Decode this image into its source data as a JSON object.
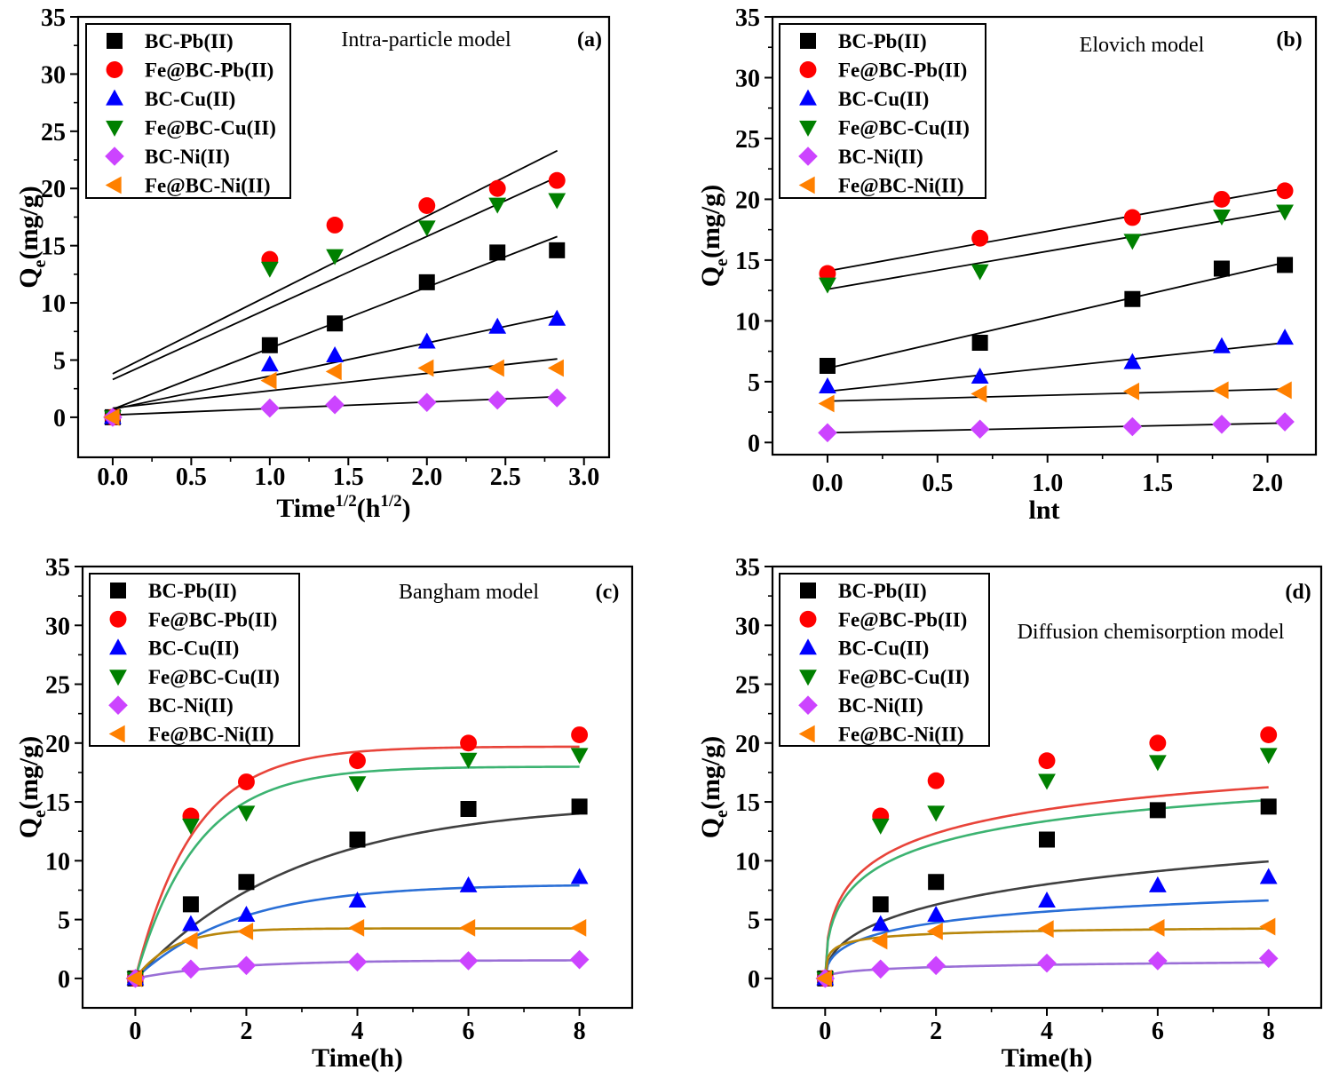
{
  "chart_data": [
    {
      "type": "scatter",
      "panel_label": "(a)",
      "model": "Intra-particle model",
      "xlabel": "Time",
      "xlabel_sup": "1/2",
      "xlabel_unit": "(h",
      "xlabel_unit_sup": "1/2",
      "xlabel_end": ")",
      "ylabel": "Q",
      "ylabel_sub": "e",
      "ylabel_unit": "(mg/g)",
      "xlim": [
        -0.22,
        3.16
      ],
      "ylim": [
        -3.5,
        35
      ],
      "xticks": [
        "0.0",
        "0.5",
        "1.0",
        "1.5",
        "2.0",
        "2.5",
        "3.0"
      ],
      "yticks": [
        "0",
        "5",
        "10",
        "15",
        "20",
        "25",
        "30",
        "35"
      ],
      "legend_position": "top-left",
      "fit": "linear",
      "series": [
        {
          "name": "BC-Pb(II)",
          "x": [
            0,
            1,
            1.414,
            2,
            2.449,
            2.828
          ],
          "y": [
            0,
            6.3,
            8.2,
            11.8,
            14.4,
            14.6
          ],
          "fit_line": [
            [
              0,
              0.7
            ],
            [
              2.83,
              15.8
            ]
          ]
        },
        {
          "name": "Fe@BC-Pb(II)",
          "x": [
            0,
            1,
            1.414,
            2,
            2.449,
            2.828
          ],
          "y": [
            0,
            13.8,
            16.8,
            18.5,
            20.0,
            20.7
          ],
          "fit_line": [
            [
              0,
              3.8
            ],
            [
              2.83,
              23.3
            ]
          ]
        },
        {
          "name": "BC-Cu(II)",
          "x": [
            0,
            1,
            1.414,
            2,
            2.449,
            2.828
          ],
          "y": [
            0,
            4.6,
            5.4,
            6.6,
            7.9,
            8.6
          ],
          "fit_line": [
            [
              0,
              0.7
            ],
            [
              2.83,
              8.9
            ]
          ]
        },
        {
          "name": "Fe@BC-Cu(II)",
          "x": [
            0,
            1,
            1.414,
            2,
            2.449,
            2.828
          ],
          "y": [
            0,
            13.0,
            14.1,
            16.6,
            18.6,
            19.0
          ],
          "fit_line": [
            [
              0,
              3.3
            ],
            [
              2.83,
              21.0
            ]
          ]
        },
        {
          "name": "BC-Ni(II)",
          "x": [
            0,
            1,
            1.414,
            2,
            2.449,
            2.828
          ],
          "y": [
            0,
            0.8,
            1.1,
            1.3,
            1.5,
            1.7
          ],
          "fit_line": [
            [
              0,
              0.2
            ],
            [
              2.83,
              1.8
            ]
          ]
        },
        {
          "name": "Fe@BC-Ni(II)",
          "x": [
            0,
            1,
            1.414,
            2,
            2.449,
            2.828
          ],
          "y": [
            0,
            3.2,
            4.0,
            4.3,
            4.3,
            4.3
          ],
          "fit_line": [
            [
              0,
              0.8
            ],
            [
              2.83,
              5.1
            ]
          ]
        }
      ]
    },
    {
      "type": "scatter",
      "panel_label": "(b)",
      "model": "Elovich model",
      "xlabel": "lnt",
      "ylabel": "Q",
      "ylabel_sub": "e",
      "ylabel_unit": "(mg/g)",
      "xlim": [
        -0.25,
        2.22
      ],
      "ylim": [
        -1,
        35
      ],
      "xticks": [
        "0.0",
        "0.5",
        "1.0",
        "1.5",
        "2.0"
      ],
      "yticks": [
        "0",
        "5",
        "10",
        "15",
        "20",
        "25",
        "30",
        "35"
      ],
      "legend_position": "top-left",
      "fit": "linear",
      "series": [
        {
          "name": "BC-Pb(II)",
          "x": [
            0,
            0.693,
            1.386,
            1.792,
            2.079
          ],
          "y": [
            6.3,
            8.2,
            11.8,
            14.3,
            14.6
          ],
          "fit_line": [
            [
              0,
              6.1
            ],
            [
              2.079,
              14.8
            ]
          ]
        },
        {
          "name": "Fe@BC-Pb(II)",
          "x": [
            0,
            0.693,
            1.386,
            1.792,
            2.079
          ],
          "y": [
            13.9,
            16.8,
            18.5,
            20.0,
            20.7
          ],
          "fit_line": [
            [
              0,
              14.1
            ],
            [
              2.079,
              20.9
            ]
          ]
        },
        {
          "name": "BC-Cu(II)",
          "x": [
            0,
            0.693,
            1.386,
            1.792,
            2.079
          ],
          "y": [
            4.6,
            5.4,
            6.6,
            7.9,
            8.6
          ],
          "fit_line": [
            [
              0,
              4.2
            ],
            [
              2.079,
              8.2
            ]
          ]
        },
        {
          "name": "Fe@BC-Cu(II)",
          "x": [
            0,
            0.693,
            1.386,
            1.792,
            2.079
          ],
          "y": [
            13.0,
            14.1,
            16.6,
            18.6,
            19.0
          ],
          "fit_line": [
            [
              0,
              12.6
            ],
            [
              2.079,
              19.1
            ]
          ]
        },
        {
          "name": "BC-Ni(II)",
          "x": [
            0,
            0.693,
            1.386,
            1.792,
            2.079
          ],
          "y": [
            0.8,
            1.1,
            1.3,
            1.5,
            1.7
          ],
          "fit_line": [
            [
              0,
              0.8
            ],
            [
              2.079,
              1.6
            ]
          ]
        },
        {
          "name": "Fe@BC-Ni(II)",
          "x": [
            0,
            0.693,
            1.386,
            1.792,
            2.079
          ],
          "y": [
            3.2,
            4.0,
            4.2,
            4.3,
            4.3
          ],
          "fit_line": [
            [
              0,
              3.4
            ],
            [
              2.079,
              4.4
            ]
          ]
        }
      ]
    },
    {
      "type": "scatter",
      "panel_label": "(c)",
      "model": "Bangham model",
      "xlabel": "Time(h)",
      "ylabel": "Q",
      "ylabel_sub": "e",
      "ylabel_unit": "(mg/g)",
      "xlim": [
        -0.95,
        8.95
      ],
      "ylim": [
        -2.5,
        35
      ],
      "xticks": [
        "0",
        "2",
        "4",
        "6",
        "8"
      ],
      "yticks": [
        "0",
        "5",
        "10",
        "15",
        "20",
        "25",
        "30",
        "35"
      ],
      "legend_position": "top-left",
      "fit": "bangham",
      "series": [
        {
          "name": "BC-Pb(II)",
          "x": [
            0,
            1,
            2,
            4,
            6,
            8
          ],
          "y": [
            0,
            6.3,
            8.2,
            11.8,
            14.4,
            14.6
          ],
          "fit": {
            "qmax": 15.0,
            "k": 0.34,
            "n": 1.0
          }
        },
        {
          "name": "Fe@BC-Pb(II)",
          "x": [
            0,
            1,
            2,
            4,
            6,
            8
          ],
          "y": [
            0,
            13.8,
            16.7,
            18.5,
            20.0,
            20.7
          ],
          "fit": {
            "qmax": 19.7,
            "k": 0.95,
            "n": 1.0
          }
        },
        {
          "name": "BC-Cu(II)",
          "x": [
            0,
            1,
            2,
            4,
            6,
            8
          ],
          "y": [
            0,
            4.6,
            5.4,
            6.6,
            7.9,
            8.6
          ],
          "fit": {
            "qmax": 8.0,
            "k": 0.55,
            "n": 1.0
          }
        },
        {
          "name": "Fe@BC-Cu(II)",
          "x": [
            0,
            1,
            2,
            4,
            6,
            8
          ],
          "y": [
            0,
            13.0,
            14.1,
            16.6,
            18.6,
            19.0
          ],
          "fit": {
            "qmax": 18.0,
            "k": 0.9,
            "n": 1.0
          }
        },
        {
          "name": "BC-Ni(II)",
          "x": [
            0,
            1,
            2,
            4,
            6,
            8
          ],
          "y": [
            0,
            0.8,
            1.1,
            1.4,
            1.5,
            1.6
          ],
          "fit": {
            "qmax": 1.55,
            "k": 0.6,
            "n": 1.0
          }
        },
        {
          "name": "Fe@BC-Ni(II)",
          "x": [
            0,
            1,
            2,
            4,
            6,
            8
          ],
          "y": [
            0,
            3.2,
            4.0,
            4.3,
            4.3,
            4.3
          ],
          "fit": {
            "qmax": 4.25,
            "k": 1.5,
            "n": 1.0
          }
        }
      ]
    },
    {
      "type": "scatter",
      "panel_label": "(d)",
      "model": "Diffusion chemisorption model",
      "xlabel": "Time(h)",
      "ylabel": "Q",
      "ylabel_sub": "e",
      "ylabel_unit": "(mg/g)",
      "xlim": [
        -0.95,
        8.95
      ],
      "ylim": [
        -2.5,
        35
      ],
      "xticks": [
        "0",
        "2",
        "4",
        "6",
        "8"
      ],
      "yticks": [
        "0",
        "5",
        "10",
        "15",
        "20",
        "25",
        "30",
        "35"
      ],
      "legend_position": "top-left",
      "fit": "diffusion-chemisorption",
      "series": [
        {
          "name": "BC-Pb(II)",
          "x": [
            0,
            1,
            2,
            4,
            6,
            8
          ],
          "y": [
            0,
            6.3,
            8.2,
            11.8,
            14.3,
            14.6
          ],
          "fit": {
            "qe": 24.0,
            "k": 6.0
          }
        },
        {
          "name": "Fe@BC-Pb(II)",
          "x": [
            0,
            1,
            2,
            4,
            6,
            8
          ],
          "y": [
            0,
            13.8,
            16.8,
            18.5,
            20.0,
            20.7
          ],
          "fit": {
            "qe": 23.8,
            "k": 18.1
          }
        },
        {
          "name": "BC-Cu(II)",
          "x": [
            0,
            1,
            2,
            4,
            6,
            8
          ],
          "y": [
            0,
            4.6,
            5.4,
            6.6,
            7.9,
            8.6
          ],
          "fit": {
            "qe": 11.0,
            "k": 5.88
          }
        },
        {
          "name": "Fe@BC-Cu(II)",
          "x": [
            0,
            1,
            2,
            4,
            6,
            8
          ],
          "y": [
            0,
            13.0,
            14.1,
            16.8,
            18.4,
            19.0
          ],
          "fit": {
            "qe": 22.3,
            "k": 16.7
          }
        },
        {
          "name": "BC-Ni(II)",
          "x": [
            0,
            1,
            2,
            4,
            6,
            8
          ],
          "y": [
            0,
            0.8,
            1.1,
            1.3,
            1.5,
            1.7
          ],
          "fit": {
            "qe": 2.26,
            "k": 1.19
          }
        },
        {
          "name": "Fe@BC-Ni(II)",
          "x": [
            0,
            1,
            2,
            4,
            6,
            8
          ],
          "y": [
            0,
            3.2,
            4.0,
            4.2,
            4.3,
            4.4
          ],
          "fit": {
            "qe": 4.8,
            "k": 12.8
          }
        }
      ]
    }
  ],
  "series_styles": [
    {
      "marker": "square",
      "color": "#000000",
      "fit_color": "#404040"
    },
    {
      "marker": "circle",
      "color": "#ff0000",
      "fit_color": "#e8443a"
    },
    {
      "marker": "triangle-up",
      "color": "#0000ff",
      "fit_color": "#2a6fd6"
    },
    {
      "marker": "triangle-down",
      "color": "#008000",
      "fit_color": "#3cb371"
    },
    {
      "marker": "diamond",
      "color": "#cc44ff",
      "fit_color": "#9a6fd6"
    },
    {
      "marker": "triangle-left",
      "color": "#ff8000",
      "fit_color": "#b8860b"
    }
  ],
  "linear_fit_color": "#000000"
}
